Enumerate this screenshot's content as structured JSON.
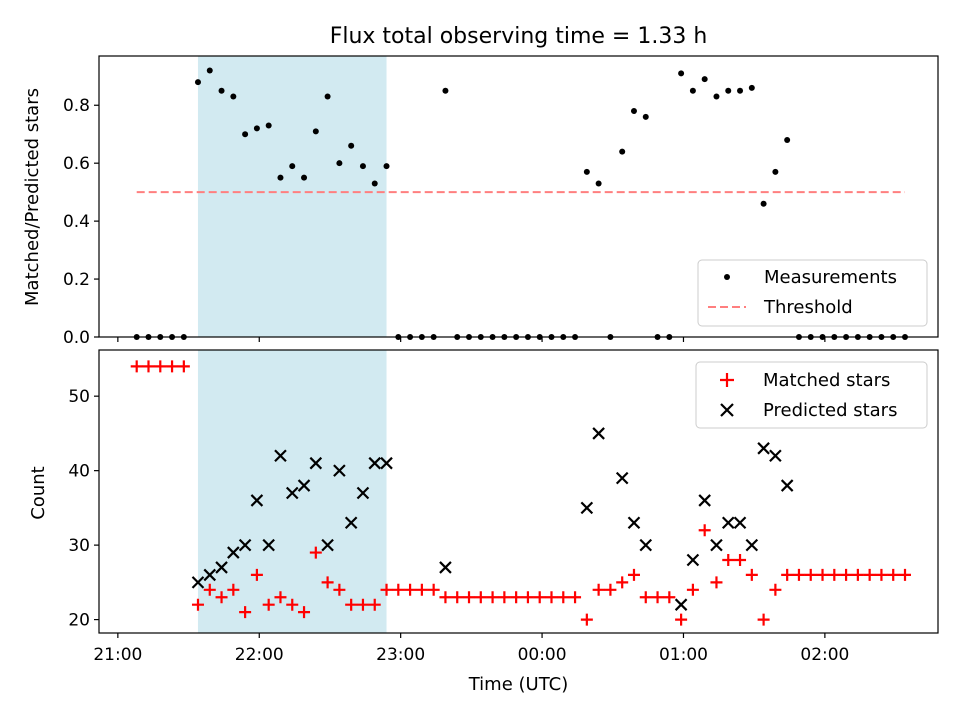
{
  "chart_data": [
    {
      "panel": "top",
      "type": "scatter",
      "title": "Flux total observing time = 1.33 h",
      "xlabel": "",
      "ylabel": "Matched/Predicted stars",
      "ylim": [
        0,
        0.97
      ],
      "yticks": [
        0.0,
        0.2,
        0.4,
        0.6,
        0.8
      ],
      "ytick_labels": [
        "0.0",
        "0.2",
        "0.4",
        "0.6",
        "0.8"
      ],
      "legend": {
        "position": "lower-right",
        "entries": [
          "Measurements",
          "Threshold"
        ]
      },
      "highlight_span": {
        "x_start": "21:34",
        "x_end": "22:54",
        "color": "#add8e6"
      },
      "series": [
        {
          "name": "Measurements",
          "marker": "dot",
          "color": "#000000",
          "points": [
            [
              "21:08",
              0
            ],
            [
              "21:13",
              0
            ],
            [
              "21:18",
              0
            ],
            [
              "21:23",
              0
            ],
            [
              "21:28",
              0
            ],
            [
              "21:34",
              0.88
            ],
            [
              "21:39",
              0.92
            ],
            [
              "21:44",
              0.85
            ],
            [
              "21:49",
              0.83
            ],
            [
              "21:54",
              0.7
            ],
            [
              "21:59",
              0.72
            ],
            [
              "22:04",
              0.73
            ],
            [
              "22:09",
              0.55
            ],
            [
              "22:14",
              0.59
            ],
            [
              "22:19",
              0.55
            ],
            [
              "22:24",
              0.71
            ],
            [
              "22:29",
              0.83
            ],
            [
              "22:34",
              0.6
            ],
            [
              "22:39",
              0.66
            ],
            [
              "22:44",
              0.59
            ],
            [
              "22:49",
              0.53
            ],
            [
              "22:54",
              0.59
            ],
            [
              "22:59",
              0
            ],
            [
              "23:04",
              0
            ],
            [
              "23:09",
              0
            ],
            [
              "23:14",
              0
            ],
            [
              "23:19",
              0.85
            ],
            [
              "23:24",
              0
            ],
            [
              "23:29",
              0
            ],
            [
              "23:34",
              0
            ],
            [
              "23:39",
              0
            ],
            [
              "23:44",
              0
            ],
            [
              "23:49",
              0
            ],
            [
              "23:54",
              0
            ],
            [
              "23:59",
              0
            ],
            [
              "00:04",
              0
            ],
            [
              "00:09",
              0
            ],
            [
              "00:14",
              0
            ],
            [
              "00:19",
              0.57
            ],
            [
              "00:24",
              0.53
            ],
            [
              "00:29",
              0
            ],
            [
              "00:34",
              0.64
            ],
            [
              "00:39",
              0.78
            ],
            [
              "00:44",
              0.76
            ],
            [
              "00:49",
              0
            ],
            [
              "00:54",
              0
            ],
            [
              "00:59",
              0.91
            ],
            [
              "01:04",
              0.85
            ],
            [
              "01:09",
              0.89
            ],
            [
              "01:14",
              0.83
            ],
            [
              "01:19",
              0.85
            ],
            [
              "01:24",
              0.85
            ],
            [
              "01:29",
              0.86
            ],
            [
              "01:34",
              0.46
            ],
            [
              "01:39",
              0.57
            ],
            [
              "01:44",
              0.68
            ],
            [
              "01:49",
              0
            ],
            [
              "01:54",
              0
            ],
            [
              "01:59",
              0
            ],
            [
              "02:04",
              0
            ],
            [
              "02:09",
              0
            ],
            [
              "02:14",
              0
            ],
            [
              "02:19",
              0
            ],
            [
              "02:24",
              0
            ],
            [
              "02:29",
              0
            ],
            [
              "02:34",
              0
            ]
          ]
        },
        {
          "name": "Threshold",
          "marker": "dashed-line",
          "color": "#ff7f7f",
          "x": [
            "21:08",
            "02:34"
          ],
          "y": [
            0.5,
            0.5
          ]
        }
      ]
    },
    {
      "panel": "bottom",
      "type": "scatter",
      "title": "",
      "xlabel": "Time (UTC)",
      "ylabel": "Count",
      "ylim": [
        18.2,
        56.2
      ],
      "yticks": [
        20,
        30,
        40,
        50
      ],
      "ytick_labels": [
        "20",
        "30",
        "40",
        "50"
      ],
      "xticks": [
        "21:00",
        "22:00",
        "23:00",
        "00:00",
        "01:00",
        "02:00"
      ],
      "xlim": [
        "20:52",
        "02:48"
      ],
      "legend": {
        "position": "top-right",
        "entries": [
          "Matched stars",
          "Predicted stars"
        ]
      },
      "highlight_span": {
        "x_start": "21:34",
        "x_end": "22:54",
        "color": "#add8e6"
      },
      "series": [
        {
          "name": "Matched stars",
          "marker": "plus",
          "color": "#ff0000",
          "points": [
            [
              "21:08",
              54
            ],
            [
              "21:13",
              54
            ],
            [
              "21:18",
              54
            ],
            [
              "21:23",
              54
            ],
            [
              "21:28",
              54
            ],
            [
              "21:34",
              22
            ],
            [
              "21:39",
              24
            ],
            [
              "21:44",
              23
            ],
            [
              "21:49",
              24
            ],
            [
              "21:54",
              21
            ],
            [
              "21:59",
              26
            ],
            [
              "22:04",
              22
            ],
            [
              "22:09",
              23
            ],
            [
              "22:14",
              22
            ],
            [
              "22:19",
              21
            ],
            [
              "22:24",
              29
            ],
            [
              "22:29",
              25
            ],
            [
              "22:34",
              24
            ],
            [
              "22:39",
              22
            ],
            [
              "22:44",
              22
            ],
            [
              "22:49",
              22
            ],
            [
              "22:54",
              24
            ],
            [
              "22:59",
              24
            ],
            [
              "23:04",
              24
            ],
            [
              "23:09",
              24
            ],
            [
              "23:14",
              24
            ],
            [
              "23:19",
              23
            ],
            [
              "23:24",
              23
            ],
            [
              "23:29",
              23
            ],
            [
              "23:34",
              23
            ],
            [
              "23:39",
              23
            ],
            [
              "23:44",
              23
            ],
            [
              "23:49",
              23
            ],
            [
              "23:54",
              23
            ],
            [
              "23:59",
              23
            ],
            [
              "00:04",
              23
            ],
            [
              "00:09",
              23
            ],
            [
              "00:14",
              23
            ],
            [
              "00:19",
              20
            ],
            [
              "00:24",
              24
            ],
            [
              "00:29",
              24
            ],
            [
              "00:34",
              25
            ],
            [
              "00:39",
              26
            ],
            [
              "00:44",
              23
            ],
            [
              "00:49",
              23
            ],
            [
              "00:54",
              23
            ],
            [
              "00:59",
              20
            ],
            [
              "01:04",
              24
            ],
            [
              "01:09",
              32
            ],
            [
              "01:14",
              25
            ],
            [
              "01:19",
              28
            ],
            [
              "01:24",
              28
            ],
            [
              "01:29",
              26
            ],
            [
              "01:34",
              20
            ],
            [
              "01:39",
              24
            ],
            [
              "01:44",
              26
            ],
            [
              "01:49",
              26
            ],
            [
              "01:54",
              26
            ],
            [
              "01:59",
              26
            ],
            [
              "02:04",
              26
            ],
            [
              "02:09",
              26
            ],
            [
              "02:14",
              26
            ],
            [
              "02:19",
              26
            ],
            [
              "02:24",
              26
            ],
            [
              "02:29",
              26
            ],
            [
              "02:34",
              26
            ]
          ]
        },
        {
          "name": "Predicted stars",
          "marker": "x",
          "color": "#000000",
          "points": [
            [
              "21:34",
              25
            ],
            [
              "21:39",
              26
            ],
            [
              "21:44",
              27
            ],
            [
              "21:49",
              29
            ],
            [
              "21:54",
              30
            ],
            [
              "21:59",
              36
            ],
            [
              "22:04",
              30
            ],
            [
              "22:09",
              42
            ],
            [
              "22:14",
              37
            ],
            [
              "22:19",
              38
            ],
            [
              "22:24",
              41
            ],
            [
              "22:29",
              30
            ],
            [
              "22:34",
              40
            ],
            [
              "22:39",
              33
            ],
            [
              "22:44",
              37
            ],
            [
              "22:49",
              41
            ],
            [
              "22:54",
              41
            ],
            [
              "23:19",
              27
            ],
            [
              "00:19",
              35
            ],
            [
              "00:24",
              45
            ],
            [
              "00:34",
              39
            ],
            [
              "00:39",
              33
            ],
            [
              "00:44",
              30
            ],
            [
              "00:59",
              22
            ],
            [
              "01:04",
              28
            ],
            [
              "01:09",
              36
            ],
            [
              "01:14",
              30
            ],
            [
              "01:19",
              33
            ],
            [
              "01:24",
              33
            ],
            [
              "01:29",
              30
            ],
            [
              "01:34",
              43
            ],
            [
              "01:39",
              42
            ],
            [
              "01:44",
              38
            ]
          ]
        }
      ]
    }
  ]
}
